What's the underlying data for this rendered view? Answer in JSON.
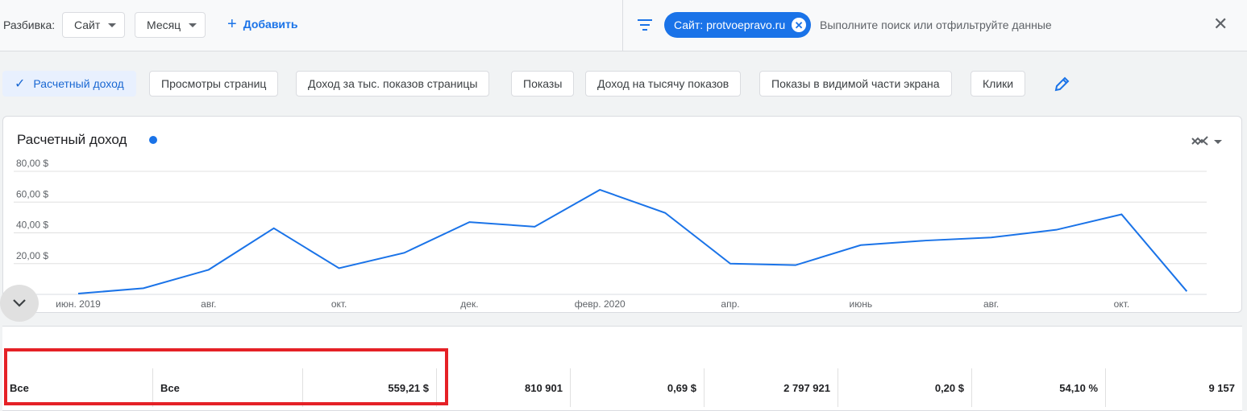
{
  "topbar": {
    "breakdown_label": "Разбивка:",
    "dropdown_site": "Сайт",
    "dropdown_month": "Месяц",
    "add_label": "Добавить",
    "filter_chip": "Сайт: protvoepravo.ru",
    "search_placeholder": "Выполните поиск или отфильтруйте данные",
    "close_symbol": "✕"
  },
  "metrics": [
    {
      "label": "Расчетный доход",
      "active": true
    },
    {
      "label": "Просмотры страниц",
      "active": false
    },
    {
      "label": "Доход за тыс. показов страницы",
      "active": false
    },
    {
      "label": "Показы",
      "active": false
    },
    {
      "label": "Доход на тысячу показов",
      "active": false
    },
    {
      "label": "Показы в видимой части экрана",
      "active": false
    },
    {
      "label": "Клики",
      "active": false
    }
  ],
  "chart_title": "Расчетный доход",
  "colors": {
    "accent": "#1a73e8",
    "highlight": "#e52126"
  },
  "chart_data": {
    "type": "line",
    "title": "Расчетный доход",
    "x": [
      "2019-06",
      "2019-07",
      "2019-08",
      "2019-09",
      "2019-10",
      "2019-11",
      "2019-12",
      "2020-01",
      "2020-02",
      "2020-03",
      "2020-04",
      "2020-05",
      "2020-06",
      "2020-07",
      "2020-08",
      "2020-09",
      "2020-10",
      "2020-11"
    ],
    "x_tick_labels": [
      {
        "x": "2019-06",
        "label": "июн. 2019"
      },
      {
        "x": "2019-08",
        "label": "авг."
      },
      {
        "x": "2019-10",
        "label": "окт."
      },
      {
        "x": "2019-12",
        "label": "дек."
      },
      {
        "x": "2020-02",
        "label": "февр. 2020"
      },
      {
        "x": "2020-04",
        "label": "апр."
      },
      {
        "x": "2020-06",
        "label": "июнь"
      },
      {
        "x": "2020-08",
        "label": "авг."
      },
      {
        "x": "2020-10",
        "label": "окт."
      }
    ],
    "series": [
      {
        "values": [
          0.5,
          4,
          16,
          43,
          17,
          27,
          47,
          44,
          68,
          53,
          20,
          19,
          32,
          35,
          37,
          42,
          52,
          2
        ]
      }
    ],
    "y_ticks": [
      {
        "value": 20,
        "label": "20,00 $"
      },
      {
        "value": 40,
        "label": "40,00 $"
      },
      {
        "value": 60,
        "label": "60,00 $"
      },
      {
        "value": 80,
        "label": "80,00 $"
      }
    ],
    "ylim": [
      0,
      80
    ],
    "grid": true
  },
  "table": {
    "row": [
      "Все",
      "Все",
      "559,21 $",
      "810 901",
      "0,69 $",
      "2 797 921",
      "0,20 $",
      "54,10 %",
      "9 157"
    ]
  }
}
